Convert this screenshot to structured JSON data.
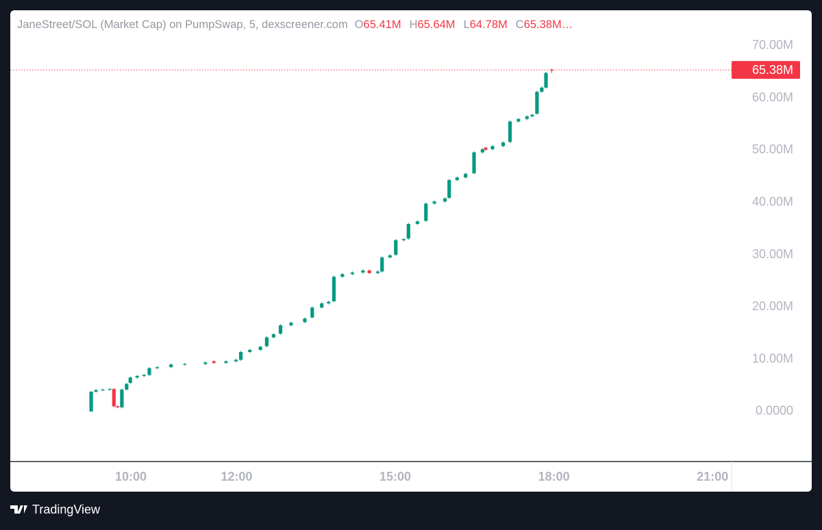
{
  "chart_data": {
    "type": "candlestick",
    "title": "JaneStreet/SOL (Market Cap) on PumpSwap, 5, dexscreener.com",
    "ohlc_legend": [
      {
        "key": "O",
        "value": "65.41M"
      },
      {
        "key": "H",
        "value": "65.64M"
      },
      {
        "key": "L",
        "value": "64.78M"
      },
      {
        "key": "C",
        "value": "65.38M…"
      }
    ],
    "x": [
      9.25,
      9.34,
      9.47,
      9.6,
      9.68,
      9.75,
      9.83,
      9.92,
      9.99,
      10.12,
      10.25,
      10.35,
      10.5,
      10.76,
      11.02,
      11.41,
      11.57,
      11.8,
      11.99,
      12.08,
      12.25,
      12.45,
      12.57,
      12.7,
      12.83,
      13.03,
      13.29,
      13.43,
      13.61,
      13.74,
      13.84,
      14.0,
      14.19,
      14.39,
      14.51,
      14.67,
      14.75,
      14.9,
      15.01,
      15.16,
      15.25,
      15.42,
      15.58,
      15.74,
      15.94,
      16.02,
      16.17,
      16.33,
      16.49,
      16.65,
      16.71,
      16.84,
      17.04,
      17.17,
      17.33,
      17.49,
      17.59,
      17.68,
      17.77,
      17.85,
      17.96
    ],
    "open": [
      0,
      3.8,
      4.1,
      4.2,
      4.3,
      1.0,
      0.8,
      4.2,
      5.5,
      6.5,
      6.8,
      7.0,
      8.3,
      8.5,
      9.0,
      9.1,
      9.6,
      9.3,
      9.6,
      9.9,
      11.4,
      11.8,
      12.5,
      14.2,
      14.9,
      16.5,
      17.1,
      18.0,
      19.9,
      20.7,
      21.1,
      25.8,
      26.3,
      26.6,
      27.0,
      26.5,
      26.8,
      29.5,
      30.0,
      32.8,
      33.1,
      35.9,
      36.5,
      39.8,
      40.2,
      40.9,
      44.3,
      44.8,
      45.6,
      49.6,
      50.5,
      50.2,
      50.8,
      51.6,
      55.5,
      56.0,
      56.5,
      57.0,
      61.2,
      62.0,
      65.41
    ],
    "high": [
      3.9,
      4.3,
      4.4,
      4.5,
      4.5,
      1.2,
      4.4,
      5.5,
      6.7,
      7.0,
      7.2,
      8.5,
      8.7,
      9.2,
      9.3,
      9.6,
      9.8,
      9.8,
      10.1,
      11.6,
      12.0,
      12.6,
      14.4,
      15.0,
      16.7,
      17.2,
      18.0,
      20.1,
      20.9,
      21.2,
      26.0,
      26.5,
      26.8,
      27.2,
      27.2,
      27.0,
      29.7,
      30.1,
      33.0,
      33.2,
      36.1,
      36.6,
      40.0,
      40.4,
      41.0,
      44.5,
      45.0,
      45.7,
      49.8,
      50.4,
      50.7,
      51.0,
      51.7,
      55.7,
      56.2,
      56.7,
      57.0,
      61.4,
      62.2,
      65.0,
      65.64
    ],
    "low": [
      0,
      3.6,
      3.9,
      4.0,
      0.8,
      0.6,
      0.6,
      4.0,
      5.3,
      6.3,
      6.6,
      6.8,
      8.1,
      8.3,
      8.8,
      8.9,
      9.1,
      9.1,
      9.4,
      9.7,
      11.2,
      11.6,
      12.3,
      14.0,
      14.7,
      16.3,
      16.9,
      17.8,
      19.7,
      20.5,
      20.9,
      25.6,
      26.1,
      26.4,
      26.3,
      26.3,
      26.6,
      29.3,
      29.8,
      32.6,
      32.9,
      35.7,
      36.3,
      39.6,
      40.0,
      40.7,
      44.1,
      44.6,
      45.4,
      49.4,
      49.9,
      50.0,
      50.6,
      51.4,
      55.3,
      55.8,
      56.3,
      56.8,
      61.0,
      61.8,
      64.78
    ],
    "close": [
      3.8,
      4.1,
      4.2,
      4.3,
      1.0,
      0.8,
      4.2,
      5.3,
      6.5,
      6.8,
      7.0,
      8.3,
      8.5,
      9.0,
      9.1,
      9.4,
      9.3,
      9.6,
      9.9,
      11.4,
      11.8,
      12.4,
      14.2,
      14.8,
      16.5,
      17.0,
      17.8,
      19.9,
      20.7,
      21.0,
      25.8,
      26.3,
      26.6,
      27.0,
      26.5,
      26.8,
      29.5,
      29.9,
      32.8,
      33.0,
      35.9,
      36.4,
      39.8,
      40.2,
      40.8,
      44.3,
      44.8,
      45.5,
      49.6,
      50.2,
      50.1,
      50.8,
      51.5,
      55.5,
      56.0,
      56.5,
      56.8,
      61.2,
      62.0,
      64.8,
      65.38
    ],
    "up_color": "#089981",
    "down_color": "#f23645",
    "xlim": [
      7.72,
      21.36
    ],
    "xticks": [
      {
        "value": 10,
        "label": "10:00"
      },
      {
        "value": 12,
        "label": "12:00"
      },
      {
        "value": 15,
        "label": "15:00"
      },
      {
        "value": 18,
        "label": "18:00"
      },
      {
        "value": 21,
        "label": "21:00"
      }
    ],
    "ylim": [
      -9.57,
      76.8
    ],
    "yticks": [
      {
        "value": 0,
        "label": "0.0000"
      },
      {
        "value": 10,
        "label": "10.00M"
      },
      {
        "value": 20,
        "label": "20.00M"
      },
      {
        "value": 30,
        "label": "30.00M"
      },
      {
        "value": 40,
        "label": "40.00M"
      },
      {
        "value": 50,
        "label": "50.00M"
      },
      {
        "value": 60,
        "label": "60.00M"
      },
      {
        "value": 70,
        "label": "70.00M"
      }
    ],
    "last_price": {
      "value": 65.38,
      "label": "65.38M"
    }
  },
  "footer": {
    "brand": "TradingView"
  }
}
